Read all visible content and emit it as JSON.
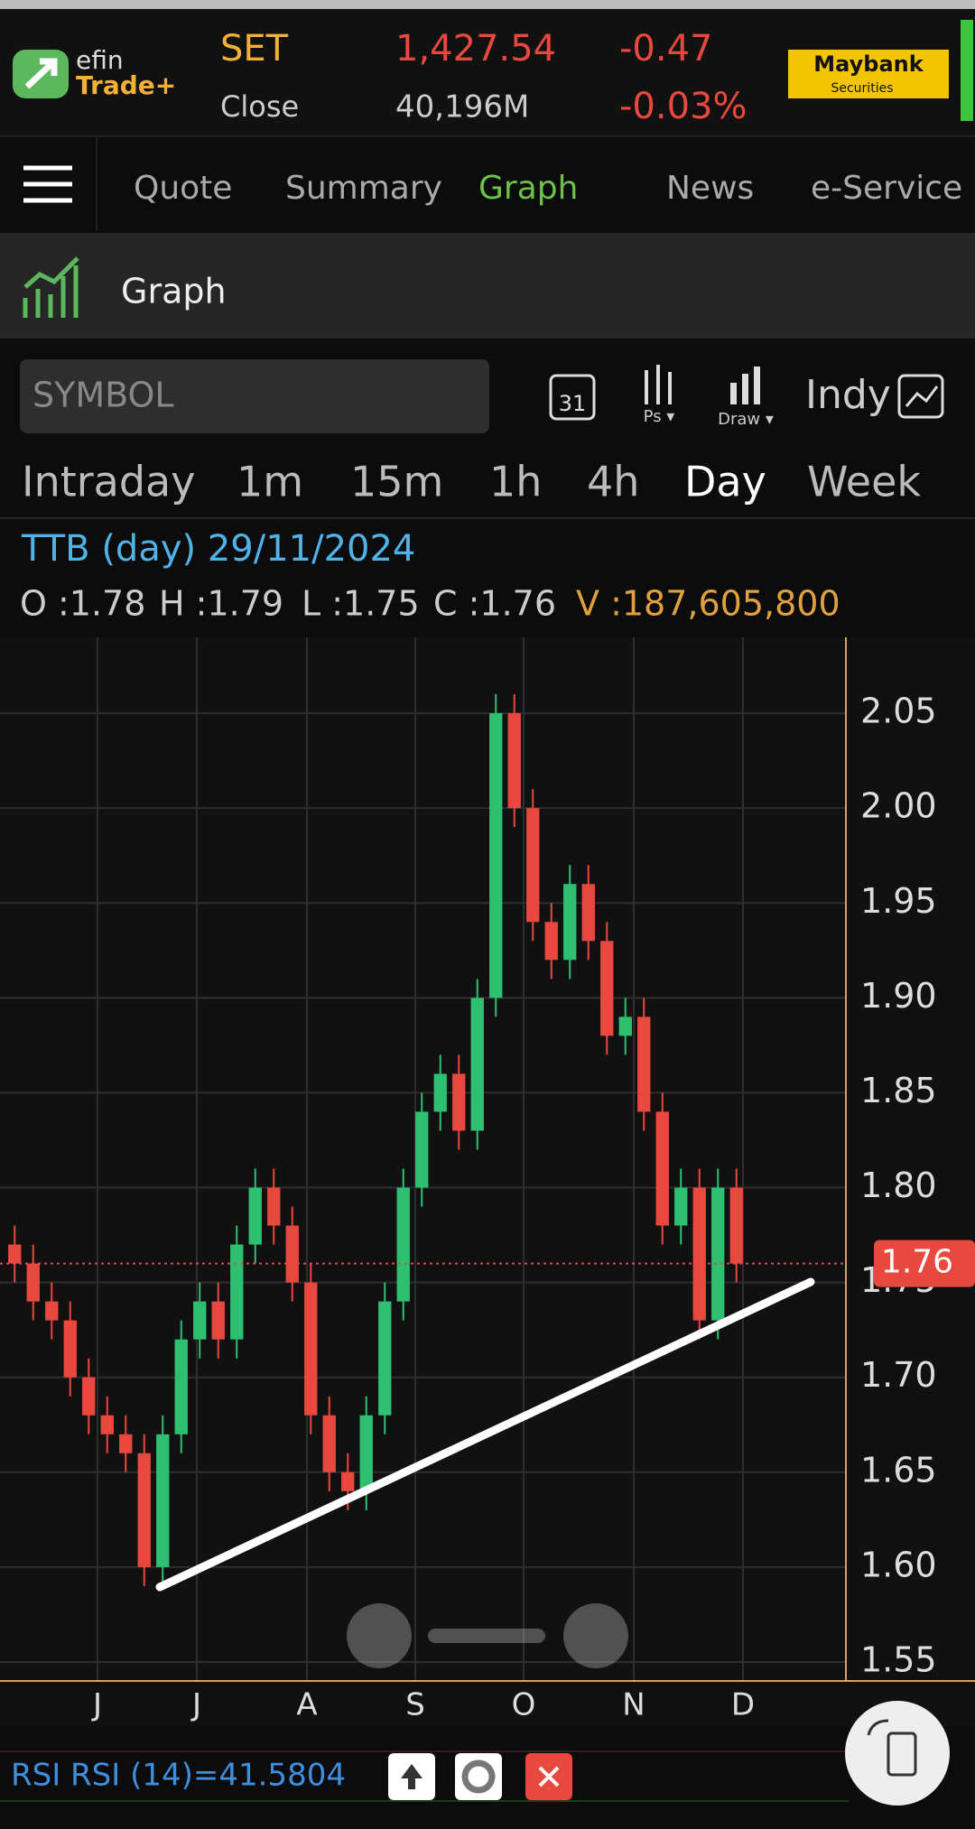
{
  "header": {
    "logo_top": "efin",
    "logo_bottom": "Trade+",
    "index": "SET",
    "value": "1,427.54",
    "change": "-0.47",
    "close_label": "Close",
    "volume": "40,196M",
    "change_pct": "-0.03%",
    "broker": "Maybank",
    "broker_sub": "Securities"
  },
  "nav": {
    "tabs": [
      "Quote",
      "Summary",
      "Graph",
      "News",
      "e-Service"
    ]
  },
  "section": {
    "title": "Graph"
  },
  "toolbar": {
    "symbol_placeholder": "SYMBOL",
    "calendar": "31",
    "ps": "Ps ▾",
    "draw": "Draw ▾",
    "indy": "Indy"
  },
  "timeframes": [
    "Intraday",
    "1m",
    "15m",
    "1h",
    "4h",
    "Day",
    "Week"
  ],
  "quote": {
    "title": "TTB (day) 29/11/2024",
    "ohlc": [
      "O :1.78",
      "H :1.79",
      "L :1.75",
      "C :1.76"
    ],
    "volume": "V :187,605,800"
  },
  "chart_data": {
    "type": "candlestick",
    "categories": [
      "J",
      "J",
      "A",
      "S",
      "O",
      "N",
      "D"
    ],
    "open": [
      1.77,
      1.76,
      1.74,
      1.73,
      1.7,
      1.68,
      1.67,
      1.66,
      1.6,
      1.67,
      1.72,
      1.74,
      1.72,
      1.77,
      1.8,
      1.78,
      1.75,
      1.68,
      1.65,
      1.64,
      1.68,
      1.74,
      1.8,
      1.84,
      1.86,
      1.83,
      1.9,
      2.05,
      2.0,
      1.94,
      1.92,
      1.96,
      1.93,
      1.88,
      1.89,
      1.84,
      1.78,
      1.8,
      1.73,
      1.8
    ],
    "high": [
      1.78,
      1.77,
      1.75,
      1.74,
      1.71,
      1.69,
      1.68,
      1.67,
      1.68,
      1.73,
      1.75,
      1.75,
      1.78,
      1.81,
      1.81,
      1.79,
      1.76,
      1.69,
      1.66,
      1.69,
      1.75,
      1.81,
      1.85,
      1.87,
      1.87,
      1.91,
      2.06,
      2.06,
      2.01,
      1.95,
      1.97,
      1.97,
      1.94,
      1.9,
      1.9,
      1.85,
      1.81,
      1.81,
      1.81,
      1.81
    ],
    "low": [
      1.75,
      1.73,
      1.72,
      1.69,
      1.67,
      1.66,
      1.65,
      1.59,
      1.59,
      1.66,
      1.71,
      1.71,
      1.71,
      1.76,
      1.77,
      1.74,
      1.67,
      1.64,
      1.63,
      1.63,
      1.67,
      1.73,
      1.79,
      1.83,
      1.82,
      1.82,
      1.89,
      1.99,
      1.93,
      1.91,
      1.91,
      1.92,
      1.87,
      1.87,
      1.83,
      1.77,
      1.77,
      1.72,
      1.72,
      1.75
    ],
    "close": [
      1.76,
      1.74,
      1.73,
      1.7,
      1.68,
      1.67,
      1.66,
      1.6,
      1.67,
      1.72,
      1.74,
      1.72,
      1.77,
      1.8,
      1.78,
      1.75,
      1.68,
      1.65,
      1.64,
      1.68,
      1.74,
      1.8,
      1.84,
      1.86,
      1.83,
      1.9,
      2.05,
      2.0,
      1.94,
      1.92,
      1.96,
      1.93,
      1.88,
      1.89,
      1.84,
      1.78,
      1.8,
      1.73,
      1.8,
      1.76
    ],
    "up_color": "#2fbf71",
    "down_color": "#e8493f",
    "ylim": [
      1.54,
      2.09
    ],
    "yticks": [
      1.55,
      {
        "value": 1.6,
        "label": "1.60"
      },
      1.65,
      {
        "value": 1.7,
        "label": "1.70"
      },
      1.75,
      {
        "value": 1.8,
        "label": "1.80"
      },
      1.85,
      {
        "value": 1.9,
        "label": "1.90"
      },
      1.95,
      {
        "value": 2,
        "label": "2.00"
      },
      2.05
    ],
    "last_price": {
      "value": 1.76,
      "label": "1.76"
    },
    "grid": true
  },
  "indicator": {
    "label": "RSI RSI (14)=41.5804"
  }
}
